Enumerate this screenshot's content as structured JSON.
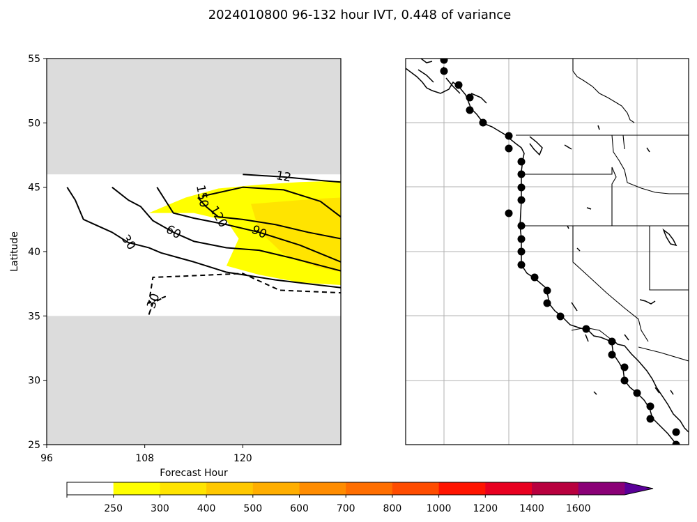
{
  "title": "2024010800 96-132 hour IVT, 0.448 of variance",
  "chart_data": [
    {
      "type": "contour",
      "panel": "left",
      "xlabel": "Forecast Hour",
      "ylabel": "Latitude",
      "xlim": [
        96,
        132
      ],
      "ylim": [
        25,
        55
      ],
      "xticks": [
        "96",
        "108",
        "120"
      ],
      "yticks": [
        "25",
        "30",
        "35",
        "40",
        "45",
        "50",
        "55"
      ],
      "masked_latitude_bands": [
        [
          46,
          55
        ],
        [
          25,
          35
        ]
      ],
      "filled_regions": [
        {
          "level": "250-300",
          "color": "#ffff00",
          "x": [
            108.5,
            113,
            117,
            122,
            127,
            132,
            132,
            127,
            122,
            118,
            119.5,
            118,
            114,
            108.5
          ],
          "y": [
            43.0,
            44.2,
            44.9,
            45.2,
            45.4,
            45.5,
            37.4,
            37.6,
            38.2,
            38.9,
            41.0,
            42.4,
            43.0,
            43.0
          ]
        },
        {
          "level": "300-400",
          "color": "#ffe400",
          "x": [
            121,
            125,
            129,
            132,
            132,
            129,
            125,
            122,
            121
          ],
          "y": [
            43.7,
            43.9,
            44.1,
            44.2,
            38.4,
            38.8,
            39.8,
            41.6,
            43.7
          ]
        }
      ],
      "contours": [
        {
          "label": "-30",
          "style": "dashed",
          "x": [
            108.5,
            109,
            110.5,
            108.5,
            109,
            113,
            120,
            124.5,
            132
          ],
          "y": [
            35.1,
            36.0,
            36.5,
            36.0,
            38.0,
            38.1,
            38.3,
            37.0,
            36.8
          ]
        },
        {
          "label": "30",
          "style": "solid",
          "x": [
            98.5,
            99.5,
            100.5,
            104,
            106,
            108.5,
            110,
            114,
            118,
            124,
            132
          ],
          "y": [
            45.0,
            44.0,
            42.5,
            41.5,
            40.7,
            40.3,
            39.9,
            39.2,
            38.4,
            37.8,
            37.2
          ]
        },
        {
          "label": "60",
          "style": "solid",
          "x": [
            104,
            106,
            107.5,
            109,
            111.5,
            114,
            118,
            122,
            126,
            132
          ],
          "y": [
            45.0,
            44.0,
            43.5,
            42.4,
            41.5,
            40.8,
            40.3,
            40.1,
            39.5,
            38.5
          ]
        },
        {
          "label": "90",
          "style": "solid",
          "x": [
            109.5,
            110.5,
            111.5,
            114,
            118,
            122,
            127,
            132
          ],
          "y": [
            45.0,
            44.0,
            43.0,
            42.6,
            42.1,
            41.5,
            40.5,
            39.2
          ]
        },
        {
          "label": "120",
          "style": "solid",
          "x": [
            114.5,
            115.5,
            117,
            120,
            124,
            128,
            132
          ],
          "y": [
            44.2,
            43.5,
            42.7,
            42.5,
            42.1,
            41.5,
            41.0
          ]
        },
        {
          "label": "150",
          "style": "solid",
          "x": [
            115,
            120,
            125,
            129.5,
            132
          ],
          "y": [
            44.3,
            45.0,
            44.8,
            43.9,
            42.7
          ]
        },
        {
          "label": "12",
          "style": "solid",
          "x": [
            120,
            125,
            130,
            132
          ],
          "y": [
            46.0,
            45.8,
            45.5,
            45.4
          ]
        }
      ]
    },
    {
      "type": "map",
      "panel": "right",
      "markers": "black circles along the Pacific coast of North America (approximately 25N-55N)"
    },
    {
      "type": "colorbar",
      "levels": [
        "250",
        "300",
        "400",
        "500",
        "600",
        "700",
        "800",
        "1000",
        "1200",
        "1400",
        "1600"
      ],
      "colors": [
        "#ffffff",
        "#ffff00",
        "#ffe400",
        "#ffc800",
        "#ffae00",
        "#ff8c00",
        "#ff6e00",
        "#ff4c00",
        "#ff1400",
        "#e80020",
        "#b8003e",
        "#8a0076",
        "#5a0098"
      ]
    }
  ]
}
